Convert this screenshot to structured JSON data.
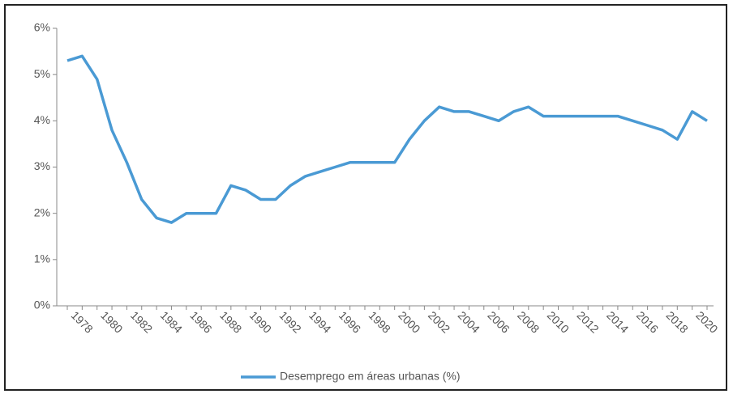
{
  "chart_data": {
    "type": "line",
    "categories": [
      null,
      "1978",
      null,
      "1980",
      null,
      "1982",
      null,
      "1984",
      null,
      "1986",
      null,
      "1988",
      null,
      "1990",
      null,
      "1992",
      null,
      "1994",
      null,
      "1996",
      null,
      "1998",
      null,
      "2000",
      null,
      "2002",
      null,
      "2004",
      null,
      "2006",
      null,
      "2008",
      null,
      "2010",
      null,
      "2012",
      null,
      "2014",
      null,
      "2016",
      null,
      "2018",
      null,
      "2020"
    ],
    "series": [
      {
        "name": "Desemprego em áreas urbanas (%)",
        "color": "#4a9ad4",
        "values": [
          5.3,
          5.4,
          4.9,
          3.8,
          3.1,
          2.3,
          1.9,
          1.8,
          2.0,
          2.0,
          2.0,
          2.6,
          2.5,
          2.3,
          2.3,
          2.6,
          2.8,
          2.9,
          3.0,
          3.1,
          3.1,
          3.1,
          3.1,
          3.6,
          4.0,
          4.3,
          4.2,
          4.2,
          4.1,
          4.0,
          4.2,
          4.3,
          4.1,
          4.1,
          4.1,
          4.1,
          4.1,
          4.1,
          4.0,
          3.9,
          3.8,
          3.6,
          4.2,
          4.0
        ]
      }
    ],
    "ylim": [
      0,
      6
    ],
    "yticks": [
      {
        "value": 0,
        "label": "0%"
      },
      {
        "value": 1,
        "label": "1%"
      },
      {
        "value": 2,
        "label": "2%"
      },
      {
        "value": 3,
        "label": "3%"
      },
      {
        "value": 4,
        "label": "4%"
      },
      {
        "value": 5,
        "label": "5%"
      },
      {
        "value": 6,
        "label": "6%"
      }
    ],
    "legend": "bottom"
  }
}
